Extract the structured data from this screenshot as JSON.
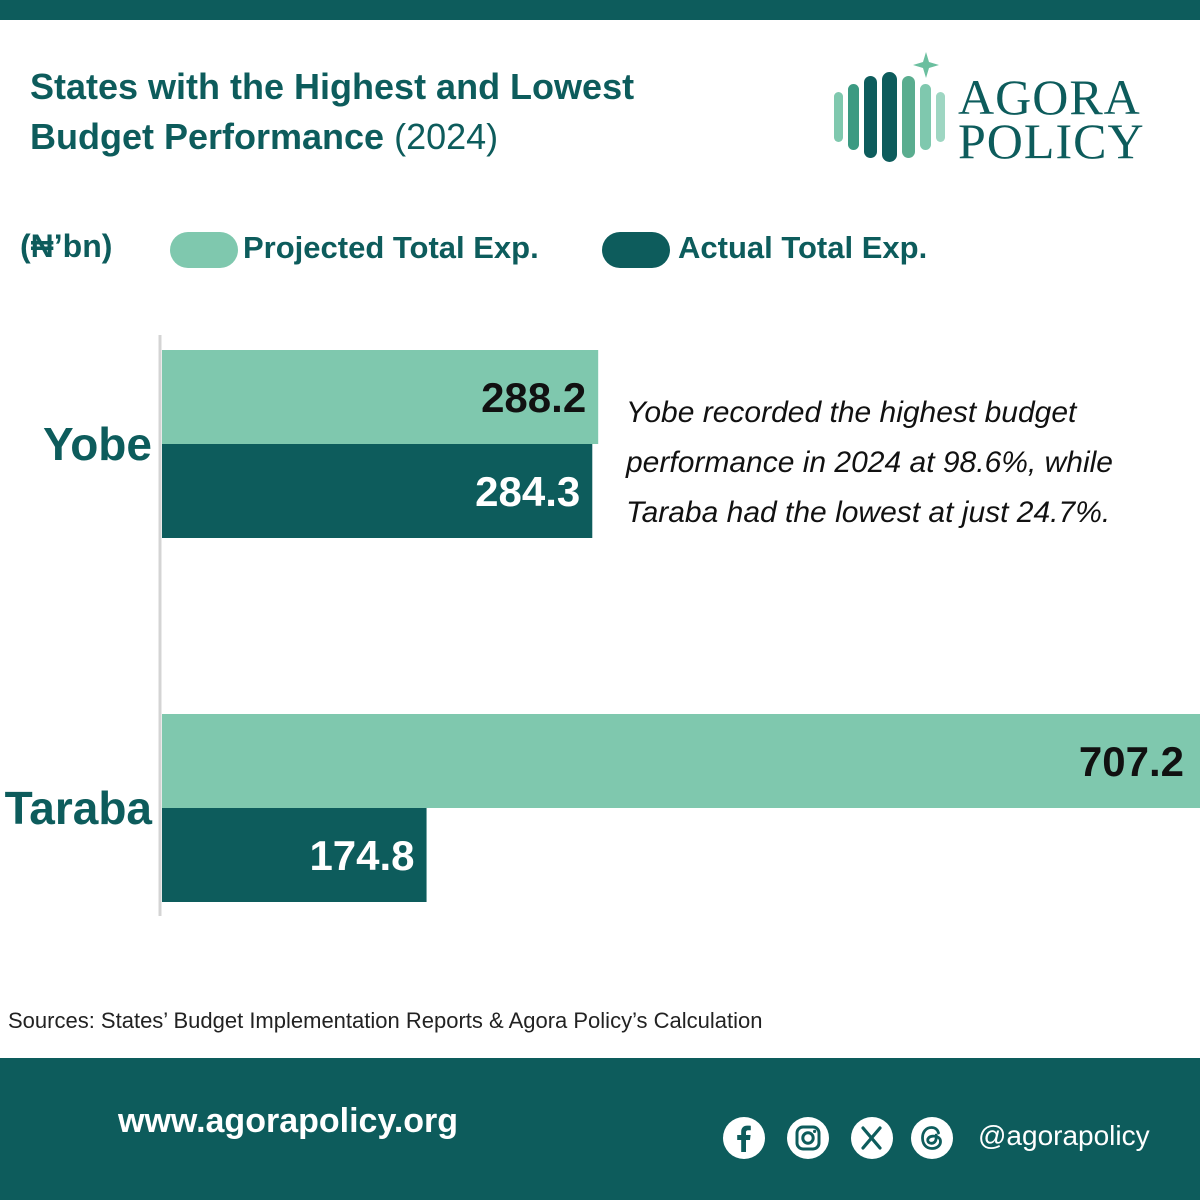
{
  "header": {
    "title_line1": "States with the Highest and Lowest",
    "title_line2": "Budget Performance",
    "title_year": "(2024)"
  },
  "logo": {
    "line1": "AGORA",
    "line2": "POLICY",
    "icon": "agora-bars-star-icon"
  },
  "legend": {
    "unit": "(₦’bn)",
    "projected": "Projected Total Exp.",
    "actual": "Actual Total Exp."
  },
  "colors": {
    "projected": "#7fc8ae",
    "actual": "#0d5c5c",
    "brand": "#0d5c5c"
  },
  "chart_data": {
    "type": "bar",
    "orientation": "horizontal",
    "categories": [
      "Yobe",
      "Taraba"
    ],
    "series": [
      {
        "name": "Projected Total Exp.",
        "values": [
          288.2,
          707.2
        ]
      },
      {
        "name": "Actual Total Exp.",
        "values": [
          284.3,
          174.8
        ]
      }
    ],
    "ylabel": "(₦’bn)",
    "legend_position": "top",
    "grid": false
  },
  "annotation": "Yobe recorded the highest budget performance in 2024 at 98.6%, while Taraba had the lowest at just 24.7%.",
  "source": "Sources: States’ Budget Implementation Reports & Agora Policy’s Calculation",
  "footer": {
    "website": "www.agorapolicy.org",
    "handle": "@agorapolicy",
    "social_icons": [
      "facebook-icon",
      "instagram-icon",
      "x-icon",
      "threads-icon"
    ]
  }
}
